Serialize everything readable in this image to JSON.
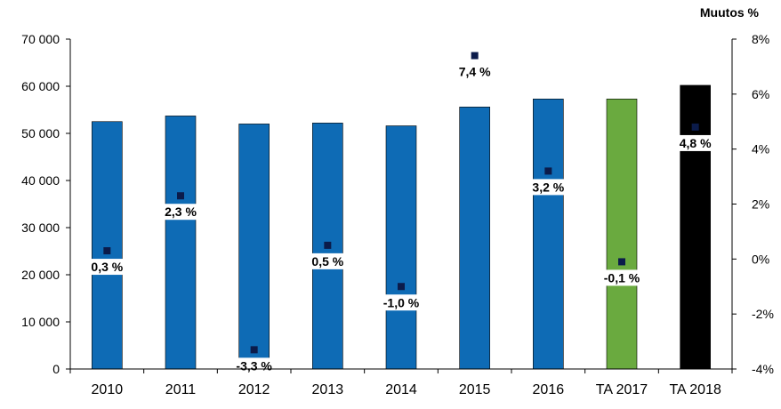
{
  "chart_data": {
    "type": "bar",
    "categories": [
      "2010",
      "2011",
      "2012",
      "2013",
      "2014",
      "2015",
      "2016",
      "TA 2017",
      "TA 2018"
    ],
    "values": [
      52500,
      53700,
      52000,
      52200,
      51600,
      55600,
      57300,
      57300,
      60200
    ],
    "bar_colors": [
      "#0e6bb5",
      "#0e6bb5",
      "#0e6bb5",
      "#0e6bb5",
      "#0e6bb5",
      "#0e6bb5",
      "#0e6bb5",
      "#6aaa3f",
      "#000000"
    ],
    "change_percent": [
      0.3,
      2.3,
      -3.3,
      0.5,
      -1.0,
      7.4,
      3.2,
      -0.1,
      4.8
    ],
    "change_labels": [
      "0,3 %",
      "2,3 %",
      "-3,3 %",
      "0,5 %",
      "-1,0 %",
      "7,4 %",
      "3,2 %",
      "-0,1 %",
      "4,8 %"
    ],
    "marker_color": "#0b1b4a",
    "ylim": [
      0,
      70000
    ],
    "y_ticks": [
      "0",
      "10 000",
      "20 000",
      "30 000",
      "40 000",
      "50 000",
      "60 000",
      "70 000"
    ],
    "y2lim": [
      -4,
      8
    ],
    "y2_ticks": [
      "-4%",
      "-2%",
      "0%",
      "2%",
      "4%",
      "6%",
      "8%"
    ],
    "y2label": "Muutos %",
    "grid": false,
    "legend": "none"
  }
}
